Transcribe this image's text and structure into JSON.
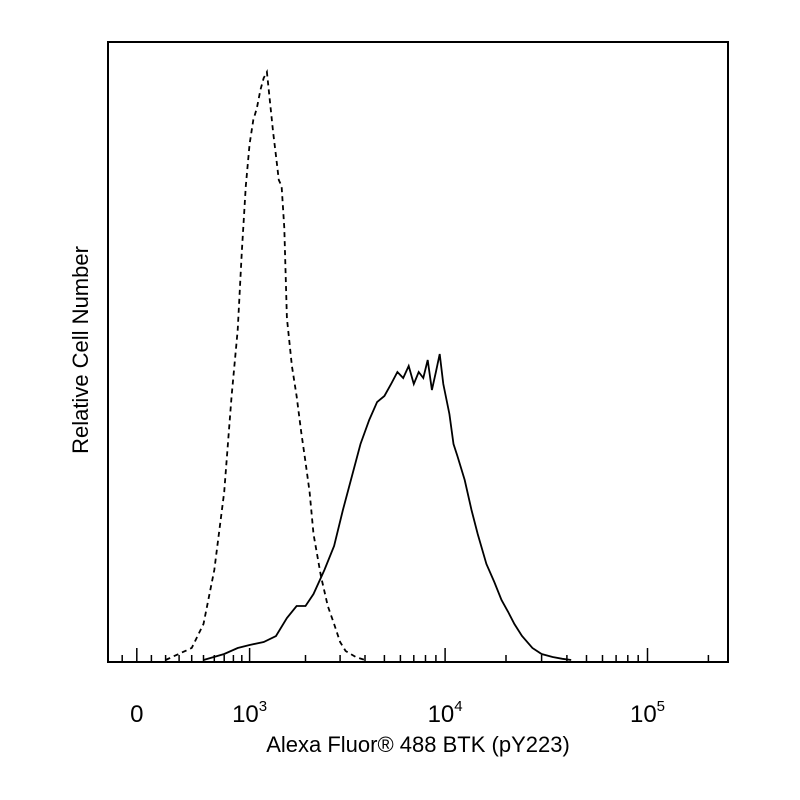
{
  "chart_data": {
    "type": "line",
    "title": "",
    "xlabel": "Alexa Fluor® 488 BTK (pY223)",
    "ylabel": "Relative Cell Number",
    "x_scale": "biexponential",
    "xlim": [
      -200,
      250000
    ],
    "ylim": [
      0,
      1
    ],
    "x_tick_labels": [
      {
        "value": 0,
        "base": "0",
        "exp": ""
      },
      {
        "value": 1000,
        "base": "10",
        "exp": "3"
      },
      {
        "value": 10000,
        "base": "10",
        "exp": "4"
      },
      {
        "value": 100000,
        "base": "10",
        "exp": "5"
      }
    ],
    "grid": false,
    "legend": "none",
    "series": [
      {
        "style": "dashed",
        "color": "#000000",
        "x": [
          200,
          400,
          500,
          600,
          700,
          780,
          850,
          900,
          950,
          1000,
          1050,
          1100,
          1150,
          1200,
          1250,
          1300,
          1350,
          1400,
          1450,
          1500,
          1550,
          1600,
          1700,
          1800,
          1900,
          2000,
          2100,
          2200,
          2400,
          2600,
          2800,
          3000,
          3200,
          3600,
          4000
        ],
        "y": [
          0,
          0.02,
          0.06,
          0.15,
          0.28,
          0.44,
          0.55,
          0.68,
          0.79,
          0.86,
          0.9,
          0.92,
          0.95,
          0.97,
          0.98,
          0.93,
          0.88,
          0.84,
          0.8,
          0.79,
          0.72,
          0.57,
          0.49,
          0.44,
          0.38,
          0.33,
          0.28,
          0.21,
          0.14,
          0.09,
          0.06,
          0.03,
          0.015,
          0.005,
          0
        ]
      },
      {
        "style": "solid",
        "color": "#000000",
        "x": [
          500,
          700,
          850,
          1000,
          1200,
          1400,
          1600,
          1800,
          2000,
          2200,
          2500,
          2800,
          3100,
          3400,
          3800,
          4200,
          4600,
          5000,
          5400,
          5800,
          6200,
          6600,
          7000,
          7400,
          7800,
          8200,
          8600,
          9000,
          9400,
          9800,
          10500,
          11000,
          11500,
          12500,
          13500,
          14500,
          16000,
          17500,
          19000,
          20500,
          22000,
          24000,
          27000,
          30000,
          34000,
          38000,
          42000
        ],
        "y": [
          0,
          0.01,
          0.02,
          0.025,
          0.03,
          0.04,
          0.07,
          0.09,
          0.09,
          0.11,
          0.15,
          0.19,
          0.25,
          0.3,
          0.36,
          0.4,
          0.43,
          0.44,
          0.46,
          0.48,
          0.47,
          0.49,
          0.46,
          0.48,
          0.47,
          0.5,
          0.45,
          0.48,
          0.51,
          0.46,
          0.41,
          0.36,
          0.34,
          0.3,
          0.25,
          0.21,
          0.16,
          0.13,
          0.1,
          0.08,
          0.06,
          0.04,
          0.02,
          0.01,
          0.005,
          0.002,
          0
        ]
      }
    ]
  }
}
